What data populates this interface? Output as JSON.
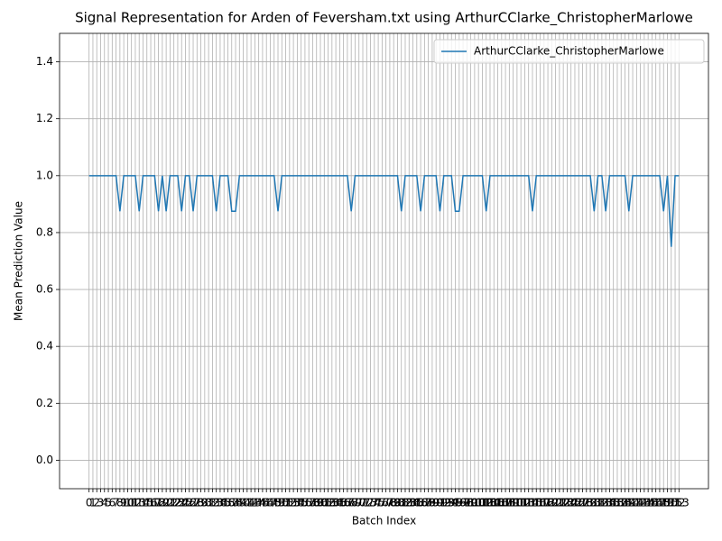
{
  "chart_data": {
    "type": "line",
    "title": "Signal Representation for Arden of Feversham.txt using ArthurCClarke_ChristopherMarlowe",
    "x_label": "Batch Index",
    "y_label": "Mean Prediction Value",
    "x": [
      0,
      1,
      2,
      3,
      4,
      5,
      6,
      7,
      8,
      9,
      10,
      11,
      12,
      13,
      14,
      15,
      16,
      17,
      18,
      19,
      20,
      21,
      22,
      23,
      24,
      25,
      26,
      27,
      28,
      29,
      30,
      31,
      32,
      33,
      34,
      35,
      36,
      37,
      38,
      39,
      40,
      41,
      42,
      43,
      44,
      45,
      46,
      47,
      48,
      49,
      50,
      51,
      52,
      53,
      54,
      55,
      56,
      57,
      58,
      59,
      60,
      61,
      62,
      63,
      64,
      65,
      66,
      67,
      68,
      69,
      70,
      71,
      72,
      73,
      74,
      75,
      76,
      77,
      78,
      79,
      80,
      81,
      82,
      83,
      84,
      85,
      86,
      87,
      88,
      89,
      90,
      91,
      92,
      93,
      94,
      95,
      96,
      97,
      98,
      99,
      100,
      101,
      102,
      103,
      104,
      105,
      106,
      107,
      108,
      109,
      110,
      111,
      112,
      113,
      114,
      115,
      116,
      117,
      118,
      119,
      120,
      121,
      122,
      123,
      124,
      125,
      126,
      127,
      128,
      129,
      130,
      131,
      132,
      133,
      134,
      135,
      136,
      137,
      138,
      139,
      140,
      141,
      142,
      143,
      144,
      145,
      146,
      147,
      148,
      149,
      150,
      151,
      152,
      153
    ],
    "series": [
      {
        "name": "ArthurCClarke_ChristopherMarlowe",
        "color": "#1f77b4",
        "values": [
          1,
          1,
          1,
          1,
          1,
          1,
          1,
          1,
          0.875,
          1,
          1,
          1,
          1,
          0.875,
          1,
          1,
          1,
          1,
          0.875,
          1,
          0.875,
          1,
          1,
          1,
          0.875,
          1,
          1,
          0.875,
          1,
          1,
          1,
          1,
          1,
          0.875,
          1,
          1,
          1,
          0.875,
          0.875,
          1,
          1,
          1,
          1,
          1,
          1,
          1,
          1,
          1,
          1,
          0.875,
          1,
          1,
          1,
          1,
          1,
          1,
          1,
          1,
          1,
          1,
          1,
          1,
          1,
          1,
          1,
          1,
          1,
          1,
          0.875,
          1,
          1,
          1,
          1,
          1,
          1,
          1,
          1,
          1,
          1,
          1,
          1,
          0.875,
          1,
          1,
          1,
          1,
          0.875,
          1,
          1,
          1,
          1,
          0.875,
          1,
          1,
          1,
          0.875,
          0.875,
          1,
          1,
          1,
          1,
          1,
          1,
          0.875,
          1,
          1,
          1,
          1,
          1,
          1,
          1,
          1,
          1,
          1,
          1,
          0.875,
          1,
          1,
          1,
          1,
          1,
          1,
          1,
          1,
          1,
          1,
          1,
          1,
          1,
          1,
          1,
          0.875,
          1,
          1,
          0.875,
          1,
          1,
          1,
          1,
          1,
          0.875,
          1,
          1,
          1,
          1,
          1,
          1,
          1,
          1,
          0.875,
          1,
          0.75,
          1,
          1
        ]
      }
    ],
    "xlim": [
      -7.65,
      160.65
    ],
    "xticks": [
      0,
      1,
      2,
      3,
      4,
      5,
      6,
      7,
      8,
      9,
      10,
      11,
      12,
      13,
      14,
      15,
      16,
      17,
      18,
      19,
      20,
      21,
      22,
      23,
      24,
      25,
      26,
      27,
      28,
      29,
      30,
      31,
      32,
      33,
      34,
      35,
      36,
      37,
      38,
      39,
      40,
      41,
      42,
      43,
      44,
      45,
      46,
      47,
      48,
      49,
      50,
      51,
      52,
      53,
      54,
      55,
      56,
      57,
      58,
      59,
      60,
      61,
      62,
      63,
      64,
      65,
      66,
      67,
      68,
      69,
      70,
      71,
      72,
      73,
      74,
      75,
      76,
      77,
      78,
      79,
      80,
      81,
      82,
      83,
      84,
      85,
      86,
      87,
      88,
      89,
      90,
      91,
      92,
      93,
      94,
      95,
      96,
      97,
      98,
      99,
      100,
      101,
      102,
      103,
      104,
      105,
      106,
      107,
      108,
      109,
      110,
      111,
      112,
      113,
      114,
      115,
      116,
      117,
      118,
      119,
      120,
      121,
      122,
      123,
      124,
      125,
      126,
      127,
      128,
      129,
      130,
      131,
      132,
      133,
      134,
      135,
      136,
      137,
      138,
      139,
      140,
      141,
      142,
      143,
      144,
      145,
      146,
      147,
      148,
      149,
      150,
      151,
      152,
      153
    ],
    "ylim": [
      -0.1,
      1.5
    ],
    "yticks": [
      {
        "value": 0,
        "label": "0.0"
      },
      0.2,
      0.4,
      0.6,
      0.8,
      {
        "value": 1,
        "label": "1.0"
      },
      1.2,
      1.4
    ],
    "grid": true,
    "legend": "upper right"
  }
}
